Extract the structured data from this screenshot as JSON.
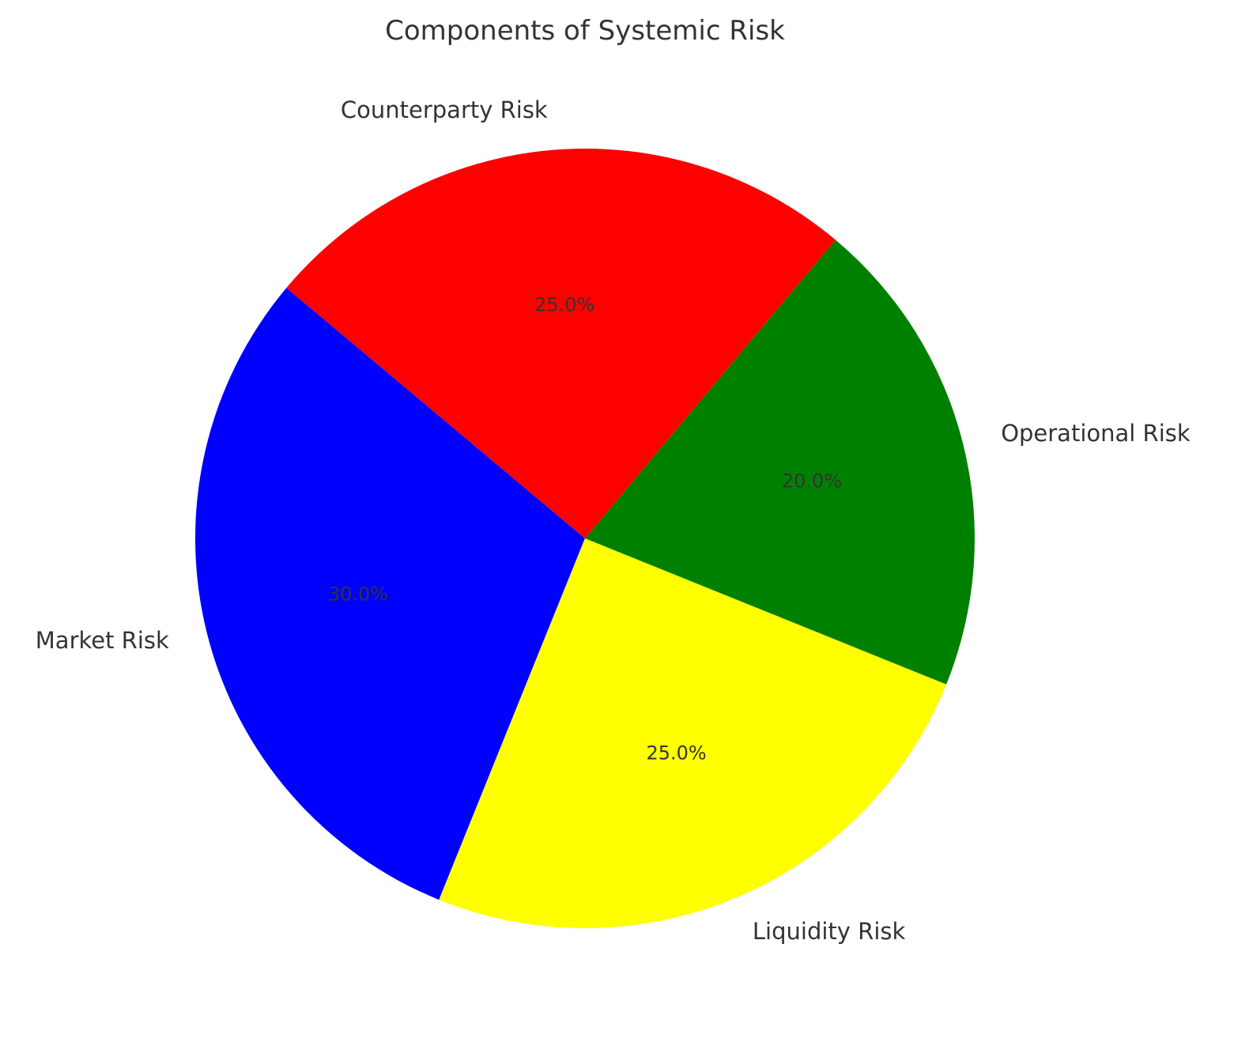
{
  "chart_data": {
    "type": "pie",
    "title": "Components of Systemic Risk",
    "labels": [
      "Market Risk",
      "Liquidity Risk",
      "Operational Risk",
      "Counterparty Risk"
    ],
    "values": [
      30.0,
      25.0,
      20.0,
      25.0
    ],
    "percent_labels": [
      "30.0%",
      "25.0%",
      "20.0%",
      "25.0%"
    ],
    "colors": [
      "#0000ff",
      "#ffff00",
      "#008000",
      "#ff0000"
    ],
    "start_angle_deg": 140,
    "direction": "counterclockwise",
    "legend": "none"
  }
}
